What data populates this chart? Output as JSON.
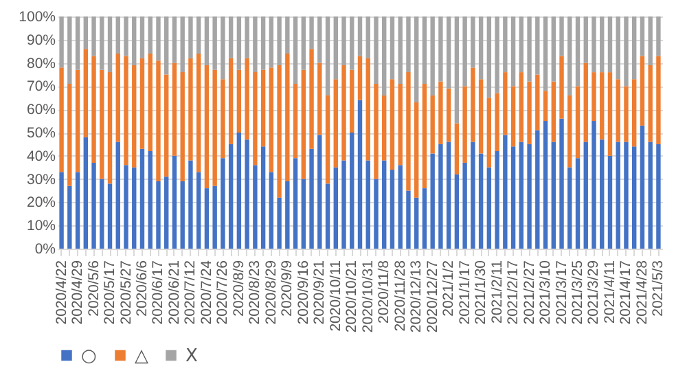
{
  "chart_data": {
    "type": "bar",
    "stacked": true,
    "categories": [
      "2020/4/22",
      null,
      "2020/4/29",
      null,
      "2020/5/6",
      null,
      "2020/5/17",
      null,
      "2020/5/27",
      null,
      "2020/6/6",
      null,
      "2020/6/17",
      null,
      "2020/6/21",
      null,
      "2020/7/12",
      null,
      "2020/7/24",
      null,
      "2020/7/26",
      null,
      "2020/8/9",
      null,
      "2020/8/23",
      null,
      "2020/8/29",
      null,
      "2020/9/9",
      null,
      "2020/9/16",
      null,
      "2020/9/21",
      null,
      "2020/10/11",
      null,
      "2020/10/21",
      null,
      "2020/10/31",
      null,
      "2020/11/8",
      null,
      "2020/11/28",
      null,
      "2020/12/13",
      null,
      "2020/12/27",
      null,
      "2021/1/2",
      null,
      "2021/1/17",
      null,
      "2021/1/30",
      null,
      "2021/2/11",
      null,
      "2021/2/17",
      null,
      "2021/2/27",
      null,
      "2021/3/10",
      null,
      "2021/3/17",
      null,
      "2021/3/25",
      null,
      "2021/3/29",
      null,
      "2021/4/11",
      null,
      "2021/4/17",
      null,
      "2021/4/28",
      null,
      "2021/5/3"
    ],
    "series": [
      {
        "name": "○",
        "color": "#4472c4",
        "values": [
          33,
          27,
          33,
          48,
          37,
          30,
          28,
          46,
          36,
          35,
          43,
          42,
          29,
          31,
          40,
          29,
          38,
          33,
          26,
          27,
          39,
          45,
          50,
          47,
          36,
          44,
          33,
          22,
          29,
          39,
          30,
          43,
          49,
          28,
          35,
          38,
          50,
          64,
          38,
          30,
          38,
          34,
          36,
          25,
          22,
          26,
          41,
          45,
          46,
          32,
          37,
          46,
          41,
          35,
          42,
          49,
          44,
          46,
          45,
          51,
          55,
          46,
          56,
          35,
          39,
          46,
          55,
          47,
          40,
          46,
          46,
          44,
          53,
          46,
          45
        ]
      },
      {
        "name": "△",
        "color": "#ed7d31",
        "values": [
          45,
          44,
          44,
          38,
          46,
          47,
          48,
          38,
          47,
          44,
          39,
          42,
          52,
          44,
          40,
          47,
          44,
          51,
          53,
          50,
          34,
          37,
          27,
          35,
          40,
          33,
          45,
          57,
          55,
          32,
          47,
          43,
          31,
          38,
          38,
          41,
          27,
          19,
          44,
          41,
          28,
          39,
          35,
          51,
          41,
          45,
          25,
          27,
          23,
          22,
          33,
          32,
          32,
          30,
          25,
          27,
          26,
          30,
          27,
          24,
          13,
          26,
          27,
          31,
          31,
          34,
          21,
          29,
          36,
          27,
          24,
          29,
          30,
          33,
          38
        ]
      },
      {
        "name": "X",
        "color": "#a5a5a5",
        "values": [
          22,
          29,
          23,
          14,
          17,
          23,
          24,
          16,
          17,
          21,
          18,
          16,
          19,
          25,
          20,
          24,
          18,
          16,
          21,
          23,
          27,
          18,
          23,
          18,
          24,
          23,
          22,
          21,
          16,
          29,
          23,
          14,
          20,
          34,
          27,
          21,
          23,
          17,
          18,
          29,
          34,
          27,
          29,
          24,
          37,
          29,
          34,
          28,
          31,
          46,
          30,
          22,
          27,
          35,
          33,
          24,
          30,
          24,
          28,
          25,
          32,
          28,
          17,
          34,
          30,
          20,
          24,
          24,
          24,
          27,
          30,
          27,
          17,
          21,
          17
        ]
      }
    ],
    "ylim": [
      0,
      100
    ],
    "yticks": [
      {
        "value": 0,
        "label": "0%"
      },
      {
        "value": 10,
        "label": "10%"
      },
      {
        "value": 20,
        "label": "20%"
      },
      {
        "value": 30,
        "label": "30%"
      },
      {
        "value": 40,
        "label": "40%"
      },
      {
        "value": 50,
        "label": "50%"
      },
      {
        "value": 60,
        "label": "60%"
      },
      {
        "value": 70,
        "label": "70%"
      },
      {
        "value": 80,
        "label": "80%"
      },
      {
        "value": 90,
        "label": "90%"
      },
      {
        "value": 100,
        "label": "100%"
      }
    ],
    "grid": "y",
    "legend": "bottom"
  }
}
